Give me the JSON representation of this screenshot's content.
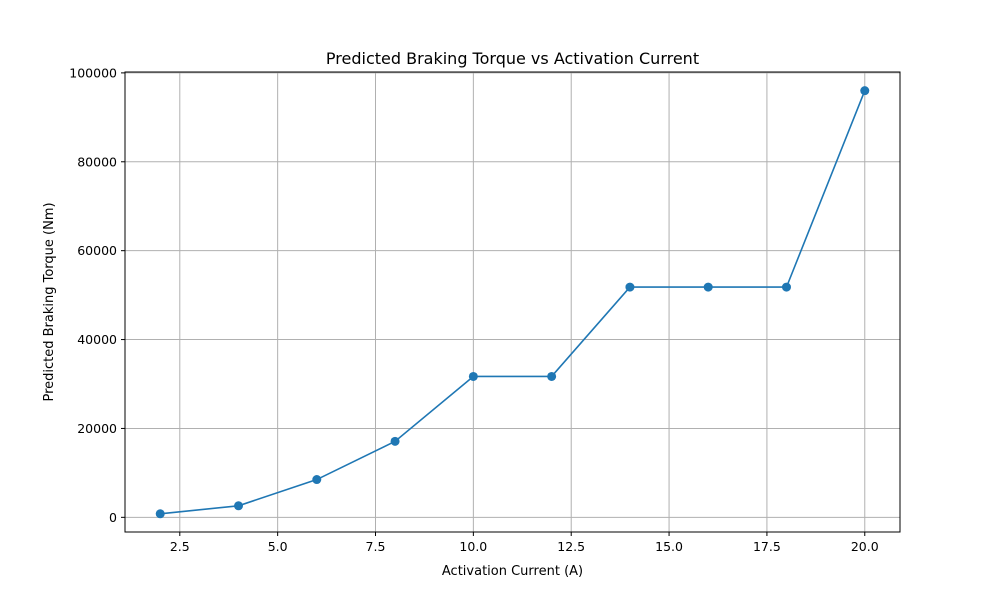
{
  "chart_data": {
    "type": "line",
    "title": "Predicted Braking Torque vs Activation Current",
    "xlabel": "Activation Current (A)",
    "ylabel": "Predicted Braking Torque (Nm)",
    "xlim": [
      1.1,
      20.9
    ],
    "ylim": [
      -3300,
      100200
    ],
    "xticks": [
      2.5,
      5.0,
      7.5,
      10.0,
      12.5,
      15.0,
      17.5,
      20.0
    ],
    "xtick_labels": [
      "2.5",
      "5.0",
      "7.5",
      "10.0",
      "12.5",
      "15.0",
      "17.5",
      "20.0"
    ],
    "yticks": [
      0,
      20000,
      40000,
      60000,
      80000,
      100000
    ],
    "ytick_labels": [
      "0",
      "20000",
      "40000",
      "60000",
      "80000",
      "100000"
    ],
    "grid": true,
    "series": [
      {
        "color": "#1f77b4",
        "marker": "circle",
        "x": [
          2,
          4,
          6,
          8,
          10,
          12,
          14,
          16,
          18,
          20
        ],
        "y": [
          800,
          2600,
          8500,
          17100,
          31700,
          31700,
          51800,
          51800,
          51800,
          96000
        ]
      }
    ]
  }
}
